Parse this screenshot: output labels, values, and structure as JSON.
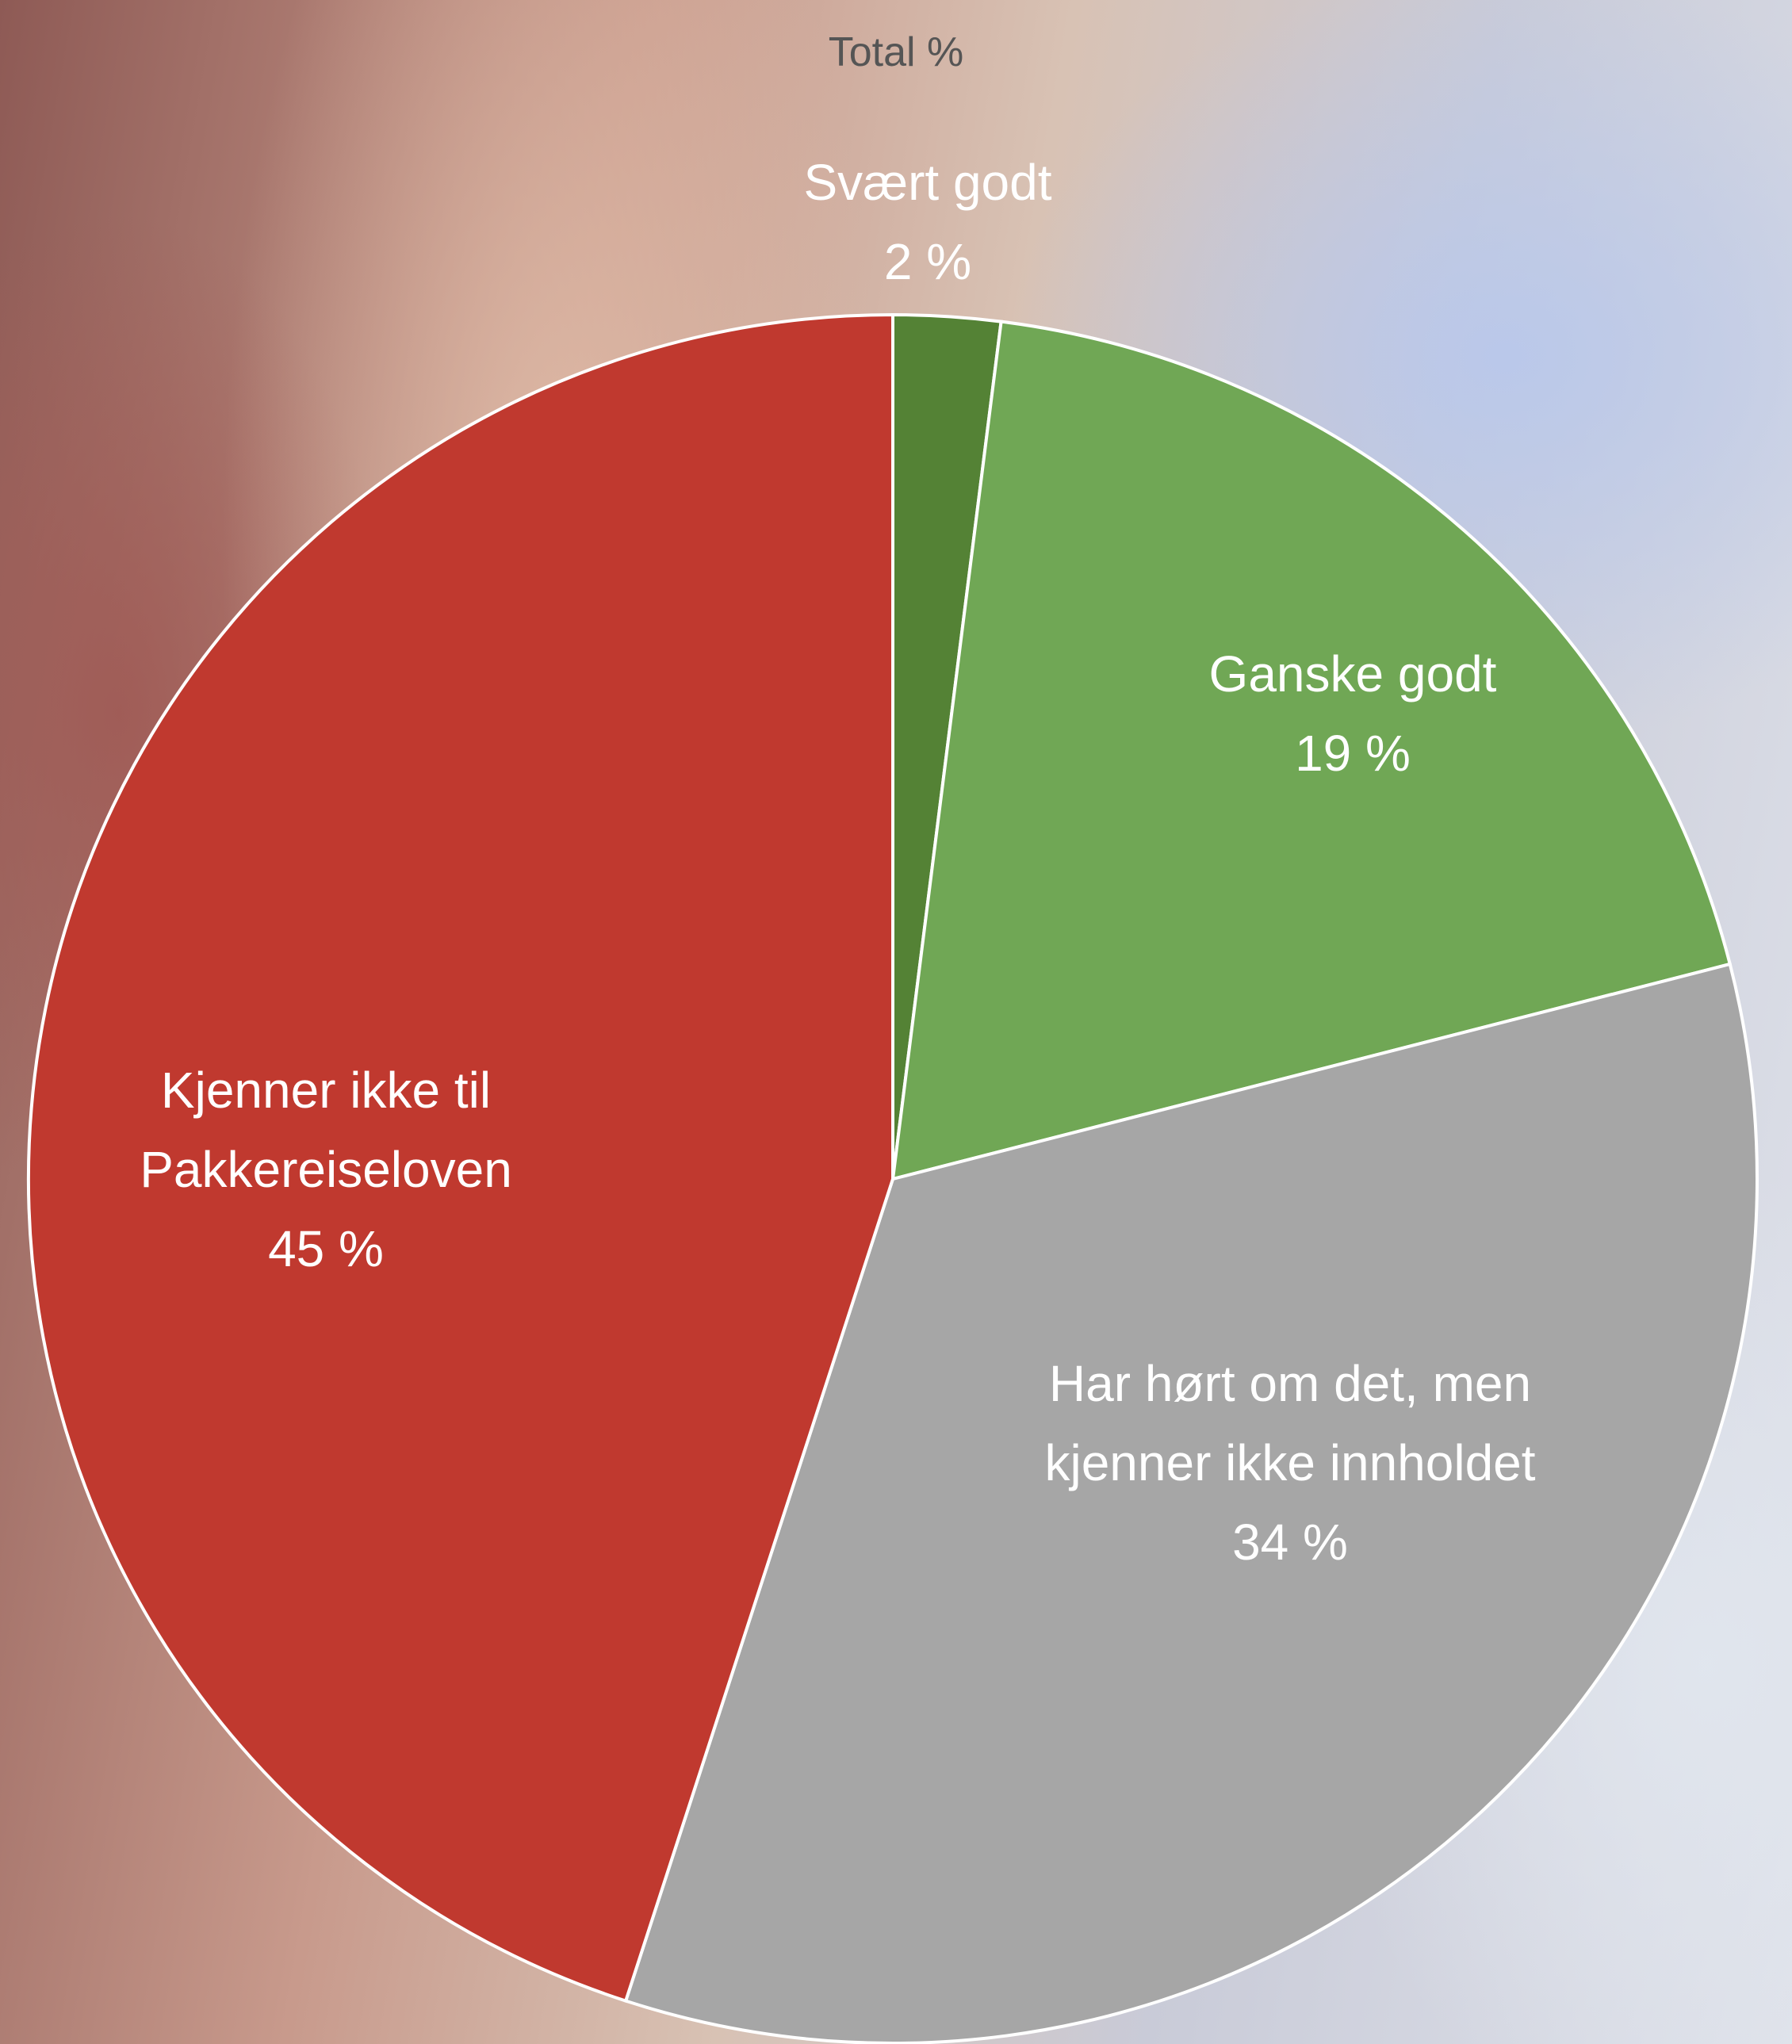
{
  "chart_data": {
    "type": "pie",
    "title": "Total %",
    "categories": [
      "Svært godt",
      "Ganske godt",
      "Har hørt om det, men kjenner ikke innholdet",
      "Kjenner ikke til Pakkereiseloven"
    ],
    "values": [
      2,
      19,
      34,
      45
    ],
    "value_labels": [
      "2 %",
      "19 %",
      "34 %",
      "45 %"
    ],
    "colors": [
      "#548235",
      "#70a755",
      "#a6a6a6",
      "#c0392f"
    ]
  }
}
